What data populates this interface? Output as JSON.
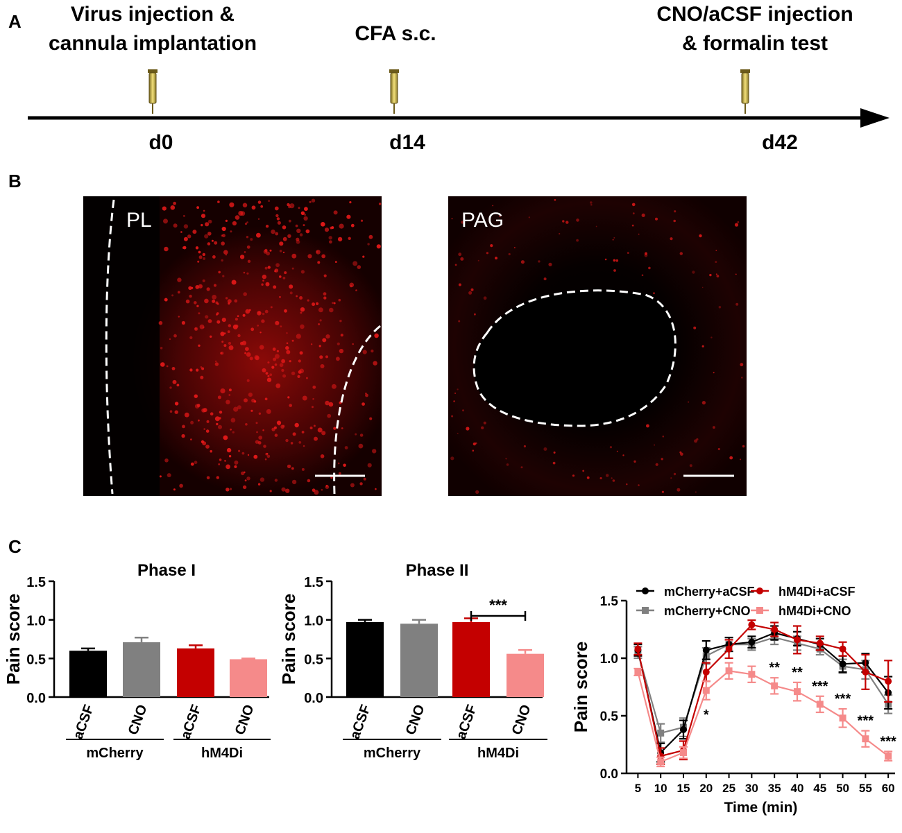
{
  "panels": {
    "a": {
      "label": "A",
      "events": [
        {
          "title_lines": [
            "Virus injection &",
            "cannula implantation"
          ],
          "day": "d0"
        },
        {
          "title_lines": [
            "CFA s.c."
          ],
          "day": "d14"
        },
        {
          "title_lines": [
            "CNO/aCSF injection",
            "& formalin test"
          ],
          "day": "d42"
        }
      ]
    },
    "b": {
      "label": "B",
      "images": [
        {
          "region": "PL"
        },
        {
          "region": "PAG"
        }
      ]
    },
    "c": {
      "label": "C"
    }
  },
  "colors": {
    "mCherry_aCSF": "#000000",
    "mCherry_CNO": "#808080",
    "hM4Di_aCSF": "#c40000",
    "hM4Di_CNO": "#f58a8a",
    "fluorescence": "#e01818"
  },
  "chart_data": [
    {
      "type": "bar",
      "title": "Phase I",
      "ylabel": "Pain score",
      "ylim": [
        0,
        1.5
      ],
      "yticks": [
        "0.0",
        "0.5",
        "1.0",
        "1.5"
      ],
      "categories": [
        "aCSF",
        "CNO",
        "aCSF",
        "CNO"
      ],
      "groups": [
        "mCherry",
        "hM4Di"
      ],
      "values": [
        0.6,
        0.71,
        0.63,
        0.49
      ],
      "errors": [
        0.03,
        0.06,
        0.04,
        0.01
      ],
      "significance": []
    },
    {
      "type": "bar",
      "title": "Phase II",
      "ylabel": "Pain score",
      "ylim": [
        0,
        1.5
      ],
      "yticks": [
        "0.0",
        "0.5",
        "1.0",
        "1.5"
      ],
      "categories": [
        "aCSF",
        "CNO",
        "aCSF",
        "CNO"
      ],
      "groups": [
        "mCherry",
        "hM4Di"
      ],
      "values": [
        0.97,
        0.95,
        0.97,
        0.56
      ],
      "errors": [
        0.03,
        0.05,
        0.05,
        0.05
      ],
      "significance": [
        {
          "between": [
            2,
            3
          ],
          "label": "***"
        }
      ]
    },
    {
      "type": "line",
      "title": "",
      "xlabel": "Time (min)",
      "ylabel": "Pain score",
      "ylim": [
        0,
        1.5
      ],
      "xlim": [
        2.5,
        61.5
      ],
      "yticks": [
        "0.0",
        "0.5",
        "1.0",
        "1.5"
      ],
      "x": [
        5,
        10,
        15,
        20,
        25,
        30,
        35,
        40,
        45,
        50,
        55,
        60
      ],
      "series": [
        {
          "name": "mCherry+aCSF",
          "marker": "circle",
          "values": [
            1.07,
            0.18,
            0.38,
            1.07,
            1.12,
            1.14,
            1.22,
            1.17,
            1.12,
            0.95,
            0.96,
            0.7
          ],
          "errors": [
            0.05,
            0.08,
            0.08,
            0.08,
            0.06,
            0.05,
            0.06,
            0.06,
            0.05,
            0.07,
            0.08,
            0.14
          ]
        },
        {
          "name": "mCherry+CNO",
          "marker": "square",
          "values": [
            1.05,
            0.35,
            0.4,
            1.02,
            1.12,
            1.12,
            1.18,
            1.13,
            1.08,
            0.93,
            0.9,
            0.6
          ],
          "errors": [
            0.05,
            0.08,
            0.08,
            0.07,
            0.06,
            0.05,
            0.06,
            0.06,
            0.05,
            0.06,
            0.08,
            0.08
          ]
        },
        {
          "name": "hM4Di+aCSF",
          "marker": "circle",
          "values": [
            1.08,
            0.15,
            0.2,
            0.88,
            1.08,
            1.29,
            1.25,
            1.16,
            1.13,
            1.08,
            0.88,
            0.8
          ],
          "errors": [
            0.05,
            0.07,
            0.08,
            0.08,
            0.08,
            0.04,
            0.06,
            0.12,
            0.06,
            0.06,
            0.15,
            0.18
          ]
        },
        {
          "name": "hM4Di+CNO",
          "marker": "square",
          "values": [
            0.88,
            0.1,
            0.18,
            0.72,
            0.89,
            0.86,
            0.76,
            0.71,
            0.6,
            0.48,
            0.3,
            0.15
          ],
          "errors": [
            0.03,
            0.04,
            0.05,
            0.08,
            0.07,
            0.07,
            0.07,
            0.08,
            0.07,
            0.08,
            0.07,
            0.04
          ]
        }
      ],
      "annotations": [
        {
          "x": 20,
          "label": "*"
        },
        {
          "x": 35,
          "label": "**"
        },
        {
          "x": 40,
          "label": "**"
        },
        {
          "x": 45,
          "label": "***"
        },
        {
          "x": 50,
          "label": "***"
        },
        {
          "x": 55,
          "label": "***"
        },
        {
          "x": 60,
          "label": "***"
        }
      ],
      "legend": "top"
    }
  ]
}
